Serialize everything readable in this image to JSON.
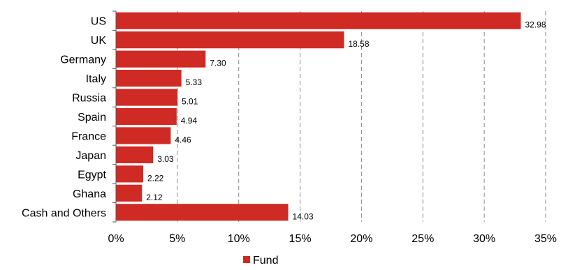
{
  "chart_data": {
    "type": "bar",
    "orientation": "horizontal",
    "categories": [
      "US",
      "UK",
      "Germany",
      "Italy",
      "Russia",
      "Spain",
      "France",
      "Japan",
      "Egypt",
      "Ghana",
      "Cash and Others"
    ],
    "series": [
      {
        "name": "Fund",
        "color": "#d02a24",
        "values": [
          32.98,
          18.58,
          7.3,
          5.33,
          5.01,
          4.94,
          4.46,
          3.03,
          2.22,
          2.12,
          14.03
        ],
        "data_labels": [
          "32.98",
          "18.58",
          "7.30",
          "5.33",
          "5.01",
          "4.94",
          "4.46",
          "3.03",
          "2.22",
          "2.12",
          "14.03"
        ]
      }
    ],
    "xlim": [
      0,
      35
    ],
    "x_ticks": [
      0,
      5,
      10,
      15,
      20,
      25,
      30,
      35
    ],
    "x_tick_labels": [
      "0%",
      "5%",
      "10%",
      "15%",
      "20%",
      "25%",
      "30%",
      "35%"
    ],
    "grid": "vertical dashed",
    "legend_position": "bottom-center",
    "title": "",
    "xlabel": "",
    "ylabel": ""
  }
}
